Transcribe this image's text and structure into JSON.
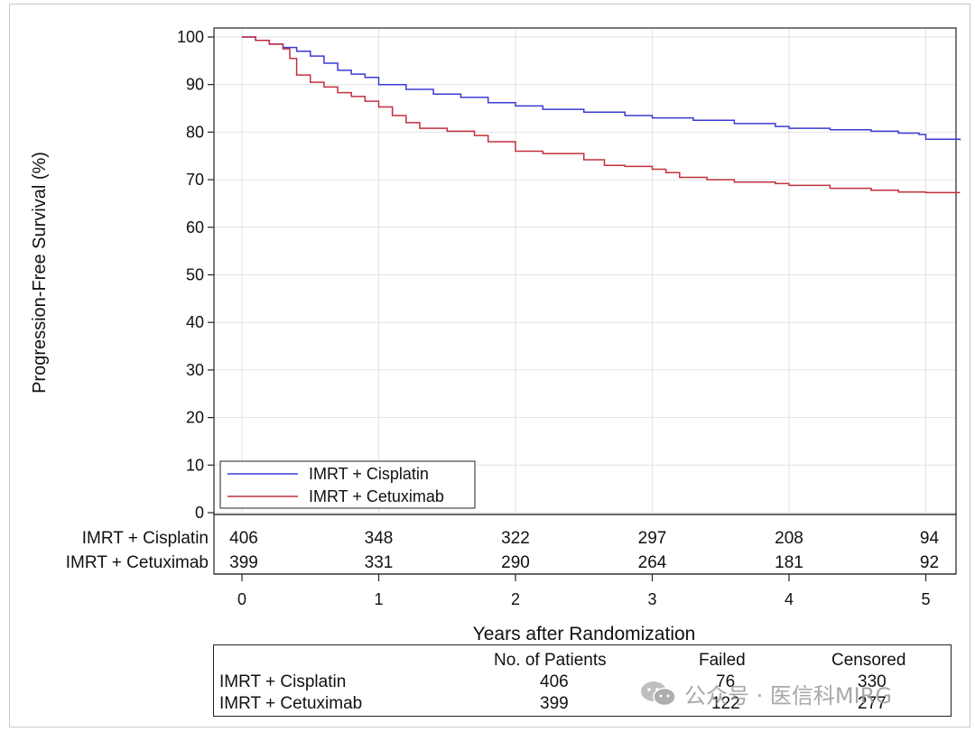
{
  "chart_data": {
    "type": "line",
    "subtype": "kaplan-meier-step",
    "ylabel": "Progression-Free Survival (%)",
    "xlabel": "Years after Randomization",
    "xlim": [
      -0.2,
      5.25
    ],
    "ylim": [
      0,
      100
    ],
    "xticks": [
      "0",
      "1",
      "2",
      "3",
      "4",
      "5"
    ],
    "yticks": [
      "0",
      "10",
      "20",
      "30",
      "40",
      "50",
      "60",
      "70",
      "80",
      "90",
      "100"
    ],
    "grid": true,
    "legend_position": "bottom-left",
    "series": [
      {
        "name": "IMRT + Cisplatin",
        "color": "#3a3ad6",
        "x": [
          0,
          0.1,
          0.2,
          0.3,
          0.4,
          0.5,
          0.6,
          0.7,
          0.8,
          0.9,
          1.0,
          1.2,
          1.4,
          1.6,
          1.8,
          2.0,
          2.2,
          2.5,
          2.8,
          3.0,
          3.3,
          3.6,
          3.9,
          4.0,
          4.3,
          4.6,
          4.8,
          4.95,
          5.0,
          5.25
        ],
        "y": [
          100,
          99.3,
          98.5,
          97.8,
          97.0,
          96.0,
          94.5,
          93.0,
          92.2,
          91.5,
          90.0,
          89.0,
          88.0,
          87.3,
          86.2,
          85.5,
          84.8,
          84.2,
          83.5,
          83.0,
          82.5,
          81.8,
          81.2,
          80.8,
          80.5,
          80.2,
          79.8,
          79.5,
          78.5,
          78.3
        ]
      },
      {
        "name": "IMRT + Cetuximab",
        "color": "#c0303c",
        "x": [
          0,
          0.1,
          0.2,
          0.3,
          0.35,
          0.4,
          0.5,
          0.6,
          0.7,
          0.8,
          0.9,
          1.0,
          1.1,
          1.2,
          1.3,
          1.5,
          1.7,
          1.8,
          2.0,
          2.2,
          2.5,
          2.65,
          2.8,
          3.0,
          3.1,
          3.2,
          3.4,
          3.6,
          3.9,
          4.0,
          4.3,
          4.6,
          4.8,
          5.0,
          5.25
        ],
        "y": [
          100,
          99.3,
          98.5,
          97.5,
          95.5,
          92.0,
          90.5,
          89.5,
          88.3,
          87.5,
          86.5,
          85.3,
          83.5,
          82.0,
          80.8,
          80.2,
          79.3,
          78.0,
          76.0,
          75.5,
          74.2,
          73.0,
          72.8,
          72.2,
          71.5,
          70.5,
          70.0,
          69.5,
          69.2,
          68.8,
          68.2,
          67.8,
          67.4,
          67.3,
          67.3
        ]
      }
    ],
    "at_risk": {
      "times": [
        0,
        1,
        2,
        3,
        4,
        5
      ],
      "rows": [
        {
          "name": "IMRT + Cisplatin",
          "counts": [
            "406",
            "348",
            "322",
            "297",
            "208",
            "94"
          ]
        },
        {
          "name": "IMRT + Cetuximab",
          "counts": [
            "399",
            "331",
            "290",
            "264",
            "181",
            "92"
          ]
        }
      ]
    },
    "summary_table": {
      "headers": [
        "No. of Patients",
        "Failed",
        "Censored"
      ],
      "rows": [
        {
          "name": "IMRT + Cisplatin",
          "patients": "406",
          "failed": "76",
          "censored": "330"
        },
        {
          "name": "IMRT + Cetuximab",
          "patients": "399",
          "failed": "122",
          "censored": "277"
        }
      ]
    }
  },
  "watermark": {
    "text": "公众号 · 医信科MIRG",
    "icon": "wechat-icon"
  }
}
